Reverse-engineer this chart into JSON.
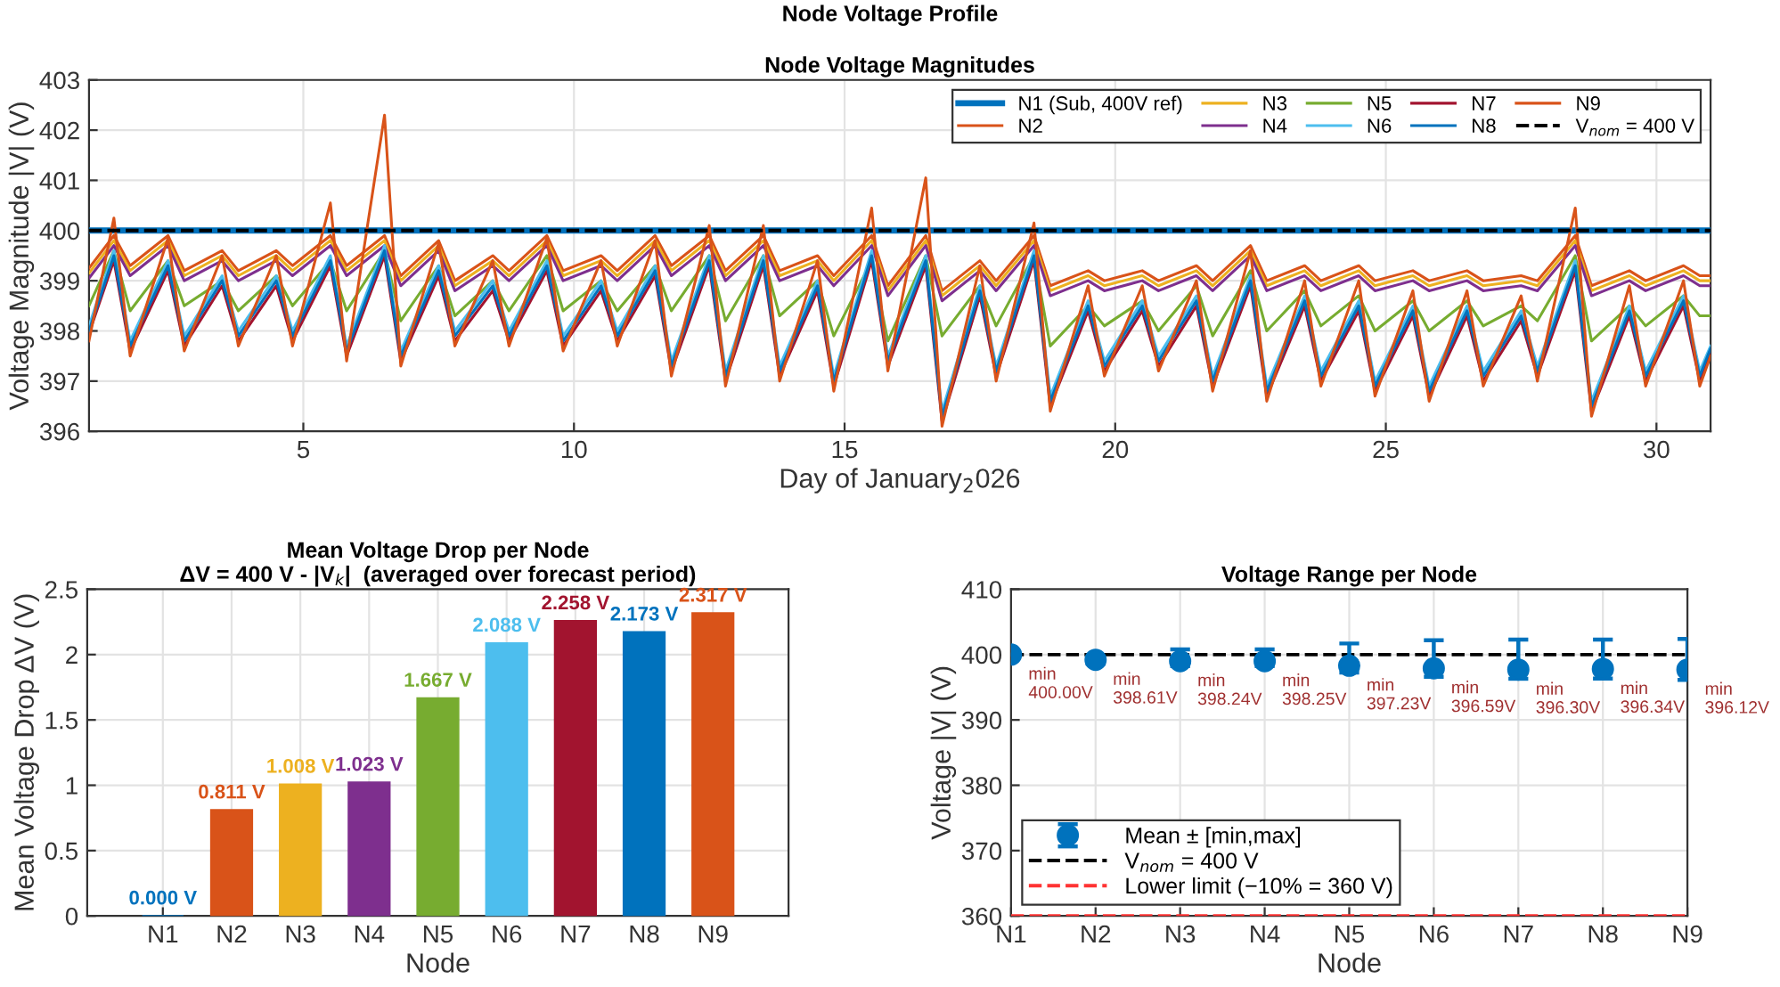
{
  "chart_data": [
    {
      "type": "line",
      "title": "Node Voltage Magnitudes",
      "xlabel": "Day of January$_{2}$026",
      "ylabel": "Voltage Magnitude |V| (V)",
      "annotations": [
        "Node Voltage Profile"
      ],
      "x": [
        1.04,
        1.5,
        1.8,
        2.5,
        2.8,
        3.5,
        3.8,
        4.5,
        4.8,
        5.5,
        5.8,
        6.5,
        6.8,
        7.5,
        7.8,
        8.5,
        8.8,
        9.5,
        9.8,
        10.5,
        10.8,
        11.5,
        11.8,
        12.5,
        12.8,
        13.5,
        13.8,
        14.5,
        14.8,
        15.5,
        15.8,
        16.5,
        16.8,
        17.5,
        17.8,
        18.5,
        18.8,
        19.5,
        19.8,
        20.5,
        20.8,
        21.5,
        21.8,
        22.5,
        22.8,
        23.5,
        23.8,
        24.5,
        24.8,
        25.5,
        25.8,
        26.5,
        26.8,
        27.5,
        27.8,
        28.5,
        28.8,
        29.5,
        29.8,
        30.5,
        30.8,
        31.0
      ],
      "series": [
        {
          "name": "N1 (Sub, 400V ref)",
          "color": "#0072bd",
          "x": [
            1.04,
            31.0
          ],
          "values": [
            400,
            400
          ]
        },
        {
          "name": "N2",
          "color": "#d95319",
          "values": [
            399.25,
            399.9,
            399.3,
            399.9,
            399.2,
            399.6,
            399.2,
            399.6,
            399.3,
            399.9,
            399.3,
            399.9,
            399.1,
            399.8,
            399.0,
            399.5,
            399.2,
            399.9,
            399.2,
            399.5,
            399.2,
            399.9,
            399.3,
            399.9,
            399.2,
            399.9,
            399.2,
            399.5,
            399.1,
            399.9,
            398.9,
            399.9,
            398.8,
            399.4,
            399.0,
            399.9,
            398.9,
            399.2,
            399.0,
            399.2,
            399.0,
            399.3,
            399.0,
            399.7,
            399.0,
            399.3,
            399.0,
            399.3,
            399.0,
            399.2,
            399.0,
            399.2,
            399.0,
            399.1,
            399.0,
            399.9,
            398.9,
            399.2,
            399.0,
            399.3,
            399.1,
            399.1
          ]
        },
        {
          "name": "N3",
          "color": "#edb120",
          "values": [
            399.15,
            399.8,
            399.2,
            399.8,
            399.1,
            399.5,
            399.1,
            399.5,
            399.2,
            399.8,
            399.2,
            399.8,
            399.0,
            399.7,
            398.9,
            399.4,
            399.1,
            399.8,
            399.1,
            399.4,
            399.1,
            399.8,
            399.2,
            399.8,
            399.1,
            399.8,
            399.1,
            399.4,
            399.0,
            399.8,
            398.8,
            399.8,
            398.7,
            399.3,
            398.9,
            399.8,
            398.8,
            399.1,
            398.9,
            399.1,
            398.9,
            399.2,
            398.9,
            399.6,
            398.9,
            399.2,
            398.9,
            399.2,
            398.9,
            399.1,
            398.9,
            399.1,
            398.9,
            399.0,
            398.9,
            399.8,
            398.8,
            399.1,
            398.9,
            399.2,
            399.0,
            399.0
          ]
        },
        {
          "name": "N4",
          "color": "#7e2f8e",
          "values": [
            399.05,
            399.7,
            399.1,
            399.7,
            399.0,
            399.4,
            399.0,
            399.4,
            399.1,
            399.7,
            399.1,
            399.7,
            398.9,
            399.6,
            398.8,
            399.3,
            399.0,
            399.7,
            399.0,
            399.3,
            399.0,
            399.7,
            399.1,
            399.7,
            399.0,
            399.7,
            399.0,
            399.3,
            398.9,
            399.7,
            398.7,
            399.7,
            398.6,
            399.2,
            398.8,
            399.7,
            398.7,
            399.0,
            398.8,
            399.0,
            398.8,
            399.1,
            398.8,
            399.5,
            398.8,
            399.1,
            398.8,
            399.1,
            398.8,
            399.0,
            398.8,
            399.0,
            398.8,
            398.9,
            398.8,
            399.7,
            398.7,
            399.0,
            398.8,
            399.1,
            398.9,
            398.9
          ]
        },
        {
          "name": "N5",
          "color": "#77ac30",
          "values": [
            398.5,
            399.6,
            398.4,
            399.4,
            398.5,
            399.0,
            398.4,
            399.1,
            398.5,
            399.4,
            398.4,
            399.6,
            398.2,
            399.3,
            398.3,
            399.0,
            398.4,
            399.5,
            398.4,
            399.0,
            398.4,
            399.3,
            398.4,
            399.5,
            398.2,
            399.5,
            398.3,
            399.0,
            397.9,
            399.4,
            397.8,
            399.5,
            397.9,
            398.9,
            398.1,
            399.5,
            397.7,
            398.5,
            398.1,
            398.6,
            398.0,
            398.9,
            397.9,
            399.2,
            398.0,
            398.8,
            398.1,
            398.7,
            398.0,
            398.6,
            398.0,
            398.6,
            398.1,
            398.5,
            398.2,
            399.5,
            397.8,
            398.5,
            398.1,
            398.7,
            398.3,
            398.3
          ]
        },
        {
          "name": "N6",
          "color": "#4dbeee",
          "values": [
            398.1,
            399.6,
            397.8,
            399.4,
            397.9,
            399.1,
            398.0,
            399.1,
            398.0,
            399.5,
            397.7,
            399.7,
            397.6,
            399.3,
            398.0,
            399.0,
            398.0,
            399.4,
            397.9,
            399.0,
            398.0,
            399.3,
            397.4,
            399.5,
            397.2,
            399.5,
            397.3,
            399.0,
            397.1,
            399.6,
            397.5,
            399.5,
            396.4,
            398.9,
            397.3,
            399.6,
            396.7,
            398.6,
            397.4,
            398.6,
            397.5,
            398.7,
            397.1,
            399.1,
            396.9,
            398.7,
            397.2,
            398.6,
            397.0,
            398.5,
            396.9,
            398.5,
            397.2,
            398.4,
            397.3,
            399.4,
            396.6,
            398.5,
            397.2,
            398.7,
            397.2,
            397.7
          ]
        },
        {
          "name": "N7",
          "color": "#a2142f",
          "values": [
            397.95,
            399.4,
            397.6,
            399.2,
            397.7,
            398.9,
            397.8,
            398.9,
            397.8,
            399.3,
            397.5,
            399.5,
            397.4,
            399.1,
            397.8,
            398.8,
            397.8,
            399.2,
            397.7,
            398.8,
            397.8,
            399.1,
            397.2,
            399.3,
            397.0,
            399.3,
            397.1,
            398.8,
            396.9,
            399.4,
            397.3,
            399.3,
            396.2,
            398.7,
            397.1,
            399.4,
            396.5,
            398.4,
            397.2,
            398.4,
            397.3,
            398.5,
            396.9,
            398.9,
            396.7,
            398.5,
            397.0,
            398.4,
            396.8,
            398.3,
            396.7,
            398.3,
            397.0,
            398.2,
            397.1,
            399.2,
            396.4,
            398.3,
            397.0,
            398.5,
            397.0,
            397.55
          ]
        },
        {
          "name": "N8",
          "color": "#0072bd",
          "values": [
            398.0,
            399.5,
            397.7,
            399.3,
            397.8,
            399.0,
            397.9,
            399.0,
            397.9,
            399.4,
            397.6,
            399.6,
            397.5,
            399.2,
            397.9,
            398.9,
            397.9,
            399.3,
            397.8,
            398.9,
            397.9,
            399.2,
            397.3,
            399.4,
            397.1,
            399.4,
            397.2,
            398.9,
            397.0,
            399.5,
            397.4,
            399.4,
            396.3,
            398.8,
            397.2,
            399.5,
            396.6,
            398.5,
            397.3,
            398.5,
            397.4,
            398.6,
            397.0,
            399.0,
            396.8,
            398.6,
            397.1,
            398.5,
            396.9,
            398.4,
            396.8,
            398.4,
            397.1,
            398.3,
            397.2,
            399.3,
            396.5,
            398.4,
            397.1,
            398.6,
            397.1,
            397.65
          ]
        },
        {
          "name": "N9",
          "color": "#d95319",
          "values": [
            397.8,
            400.25,
            397.5,
            399.85,
            397.6,
            399.5,
            397.7,
            399.5,
            397.7,
            400.55,
            397.4,
            402.3,
            397.3,
            399.75,
            397.7,
            399.4,
            397.7,
            399.85,
            397.6,
            399.4,
            397.7,
            399.8,
            397.1,
            400.1,
            396.9,
            400.1,
            397.0,
            399.4,
            396.8,
            400.45,
            397.2,
            401.05,
            396.1,
            399.3,
            397.0,
            400.15,
            396.4,
            398.9,
            397.1,
            398.9,
            397.2,
            399.0,
            396.8,
            399.6,
            396.6,
            399.0,
            396.9,
            399.0,
            396.7,
            398.8,
            396.6,
            398.8,
            396.9,
            398.7,
            397.0,
            400.45,
            396.3,
            398.9,
            396.9,
            399.0,
            396.9,
            397.5
          ]
        }
      ],
      "ref_lines": [
        {
          "axis": "y",
          "value": 400,
          "label": "V$_{nom}$ = 400 V",
          "color": "#000000",
          "line_style": "dashed"
        }
      ],
      "xlim": [
        1.04,
        31.0
      ],
      "xticks": [
        5,
        10,
        15,
        20,
        25,
        30
      ],
      "ylim": [
        396,
        403
      ],
      "yticks": [
        396,
        397,
        398,
        399,
        400,
        401,
        402,
        403
      ],
      "grid": true,
      "legend": "top right",
      "line_style": "solid",
      "marker": "none"
    },
    {
      "type": "bar",
      "title": "Mean Voltage Drop per Node\nΔV = 400 V - |V$_{k}$|  (averaged over forecast period)",
      "xlabel": "Node",
      "ylabel": "Mean Voltage Drop ΔV (V)",
      "categories": [
        "N1",
        "N2",
        "N3",
        "N4",
        "N5",
        "N6",
        "N7",
        "N8",
        "N9"
      ],
      "values": [
        0,
        0.811,
        1.008,
        1.023,
        1.667,
        2.088,
        2.258,
        2.173,
        2.317
      ],
      "colors": [
        "#0072bd",
        "#d95319",
        "#edb120",
        "#7e2f8e",
        "#77ac30",
        "#4dbeee",
        "#a2142f",
        "#0072bd",
        "#d95319"
      ],
      "value_labels": [
        "0.000 V",
        "0.811 V",
        "1.008 V",
        "1.023 V",
        "1.667 V",
        "2.088 V",
        "2.258 V",
        "2.173 V",
        "2.317 V"
      ],
      "ylim": [
        0,
        2.5
      ],
      "yticks": [
        0,
        0.5,
        1,
        1.5,
        2,
        2.5
      ],
      "grid": true
    },
    {
      "type": "scatter",
      "title": "Voltage Range per Node",
      "xlabel": "Node",
      "ylabel": "Voltage |V| (V)",
      "categories": [
        "N1",
        "N2",
        "N3",
        "N4",
        "N5",
        "N6",
        "N7",
        "N8",
        "N9"
      ],
      "series": [
        {
          "name": "Mean ± [min,max]",
          "color": "#0072bd",
          "values": [
            400.0,
            399.2,
            399.0,
            399.0,
            398.3,
            397.9,
            397.7,
            397.8,
            397.7
          ],
          "errors": [
            [
              400.0,
              400.0
            ],
            [
              398.61,
              399.2
            ],
            [
              398.24,
              400.8
            ],
            [
              398.25,
              400.8
            ],
            [
              397.23,
              401.7
            ],
            [
              396.59,
              402.2
            ],
            [
              396.3,
              402.3
            ],
            [
              396.34,
              402.3
            ],
            [
              396.12,
              402.4
            ]
          ]
        }
      ],
      "ref_lines": [
        {
          "axis": "y",
          "value": 400,
          "label": "V$_{nom}$ = 400 V",
          "color": "#000000",
          "line_style": "dashed"
        },
        {
          "axis": "y",
          "value": 360,
          "label": "Lower limit (−10% = 360 V)",
          "color": "#ff3333",
          "line_style": "dashed"
        }
      ],
      "annotations": [
        {
          "text": "min\n400.00V",
          "x": "N1",
          "y": 400.0
        },
        {
          "text": "min\n398.61V",
          "x": "N2",
          "y": 399.2
        },
        {
          "text": "min\n398.24V",
          "x": "N3",
          "y": 399.0
        },
        {
          "text": "min\n398.25V",
          "x": "N4",
          "y": 399.0
        },
        {
          "text": "min\n397.23V",
          "x": "N5",
          "y": 398.3
        },
        {
          "text": "min\n396.59V",
          "x": "N6",
          "y": 397.9
        },
        {
          "text": "min\n396.30V",
          "x": "N7",
          "y": 397.7
        },
        {
          "text": "min\n396.34V",
          "x": "N8",
          "y": 397.8
        },
        {
          "text": "min\n396.12V",
          "x": "N9",
          "y": 397.7
        }
      ],
      "ylim": [
        360,
        410
      ],
      "yticks": [
        360,
        370,
        380,
        390,
        400,
        410
      ],
      "grid": true,
      "legend": "bottom left",
      "marker": "circle"
    }
  ]
}
